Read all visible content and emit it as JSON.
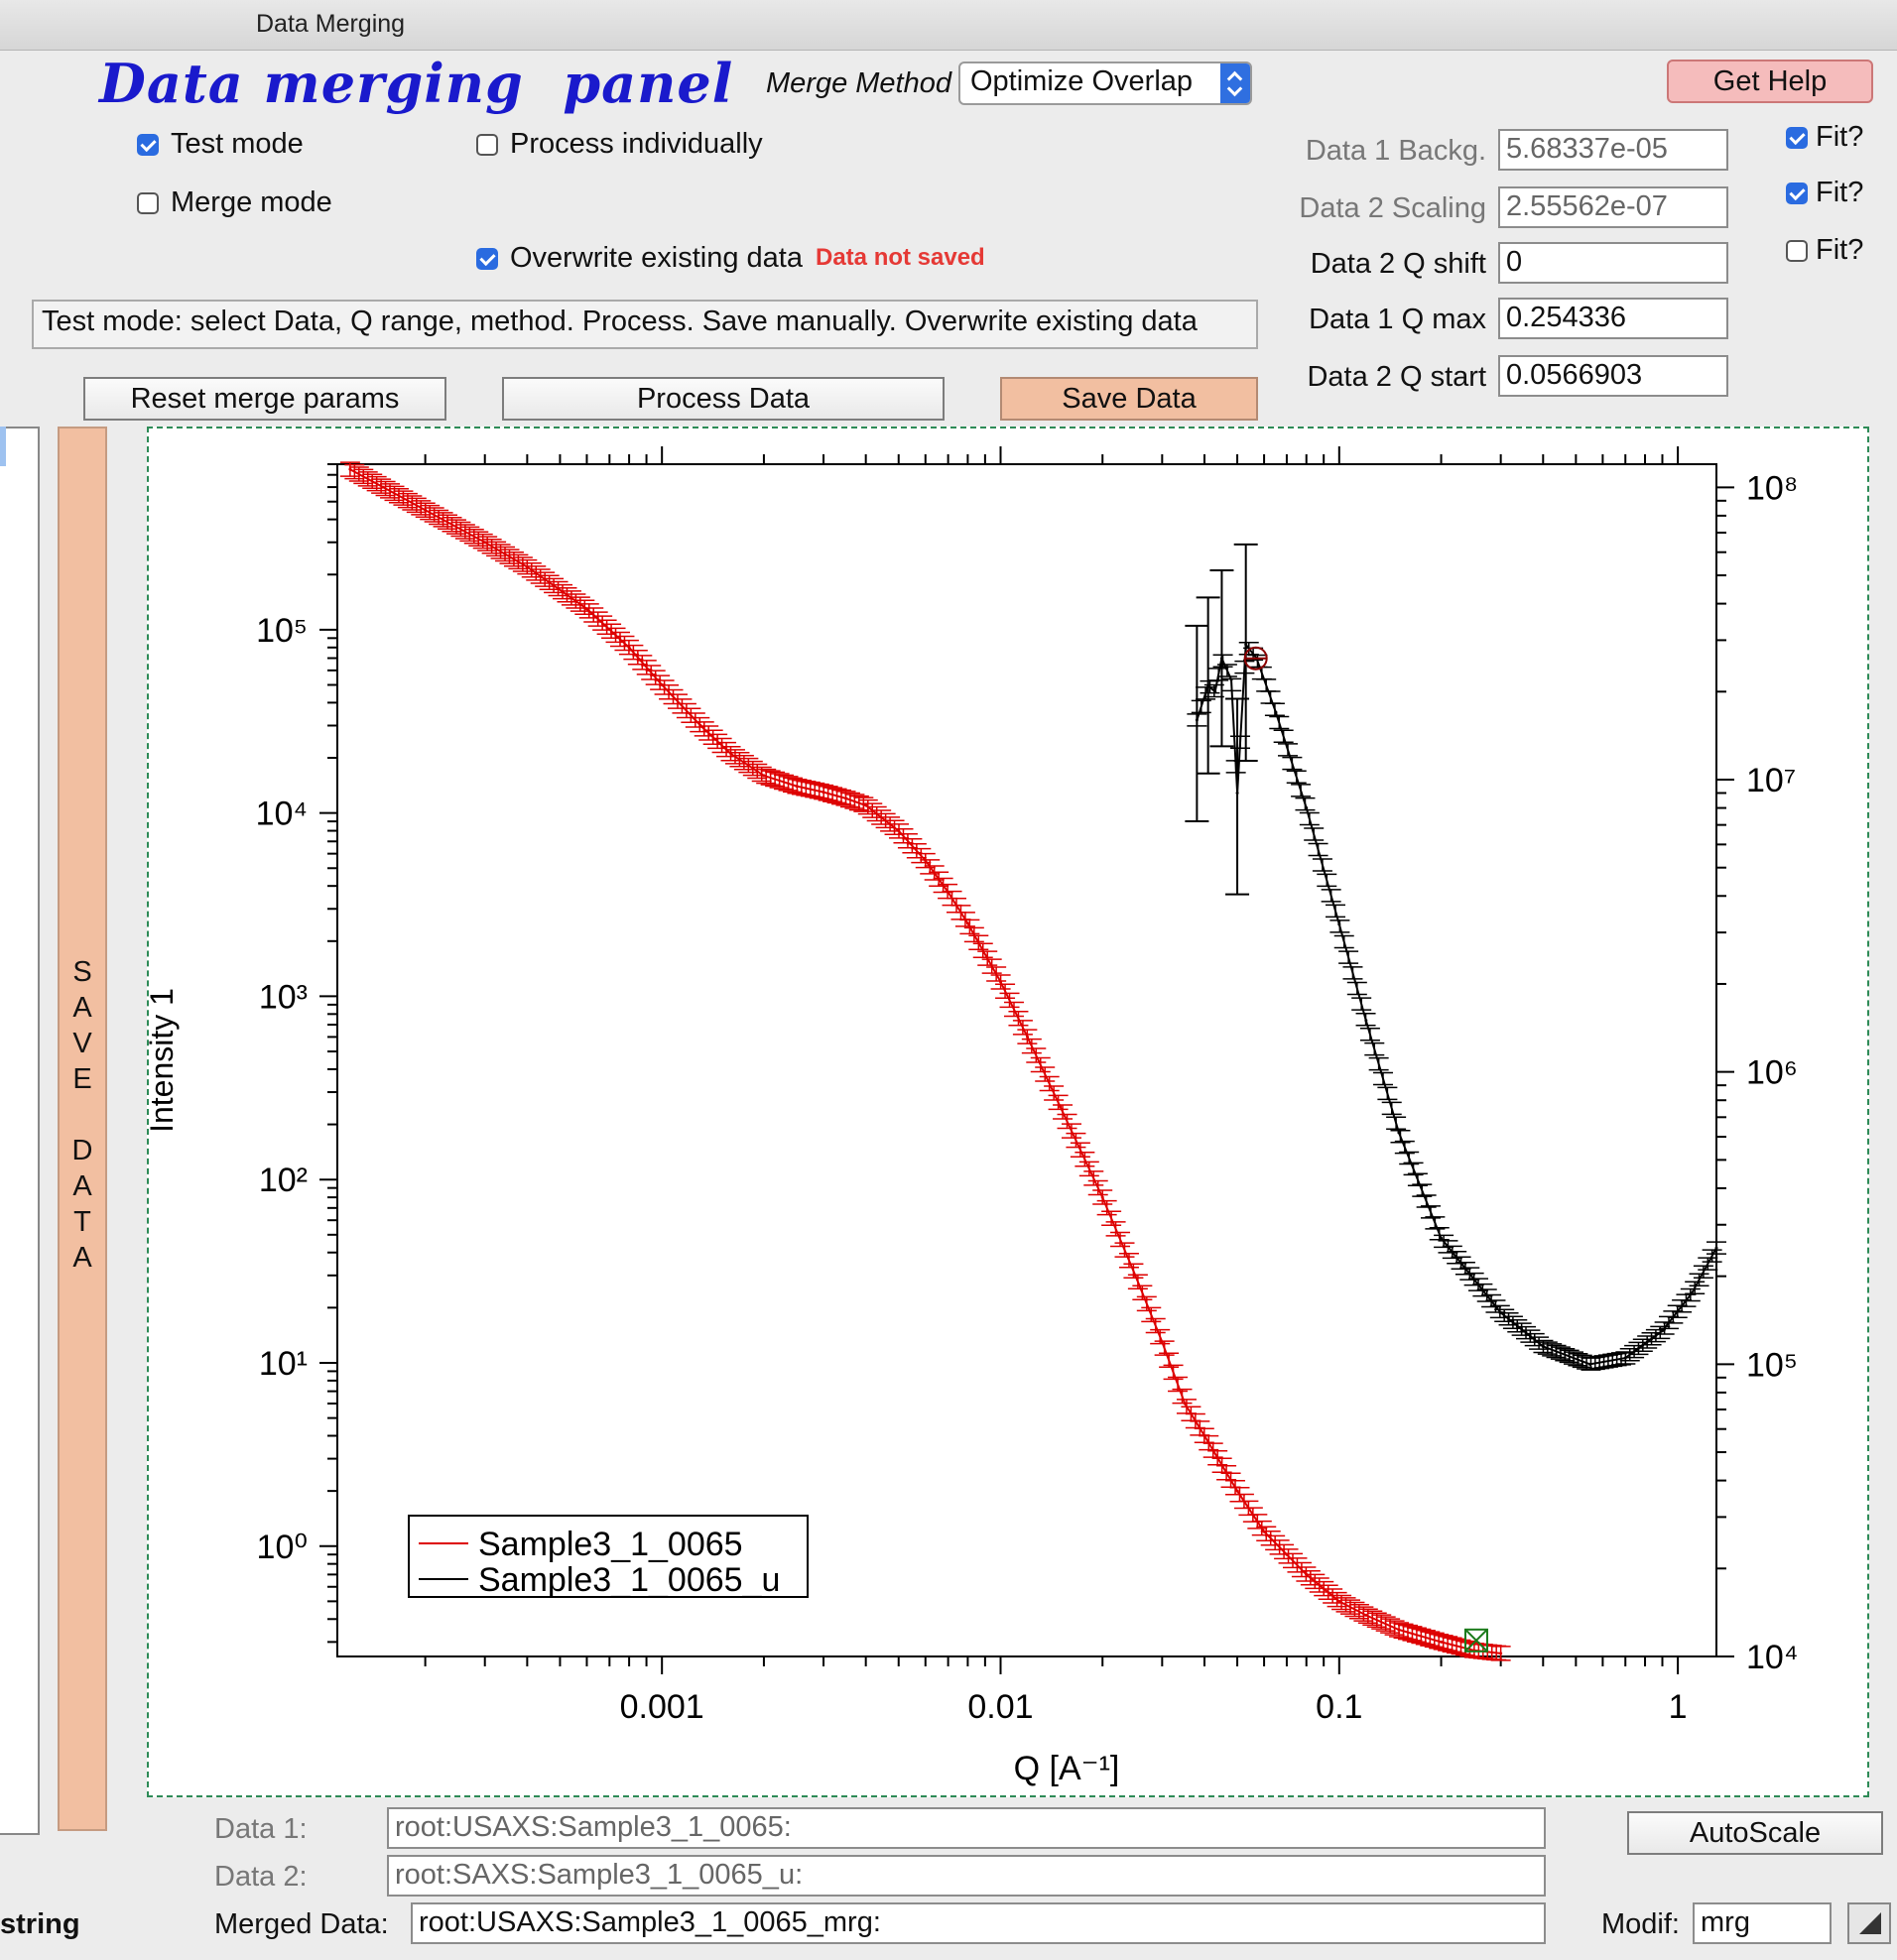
{
  "window": {
    "title": "Data Merging"
  },
  "panel": {
    "heading": "Data merging  panel",
    "merge_method_label": "Merge Method",
    "merge_method_value": "Optimize Overlap",
    "help_button": "Get Help",
    "checkboxes": {
      "test_mode": {
        "label": "Test mode",
        "checked": true
      },
      "merge_mode": {
        "label": "Merge mode",
        "checked": false
      },
      "process_individually": {
        "label": "Process individually",
        "checked": false
      },
      "overwrite": {
        "label": "Overwrite existing data",
        "checked": true
      }
    },
    "not_saved_text": "Data not saved",
    "status_text": "Test mode: select Data, Q range, method. Process. Save manually. Overwrite existing data",
    "params": [
      {
        "label": "Data 1 Backg.",
        "value": "5.68337e-05",
        "fit_label": "Fit?",
        "fit_checked": true,
        "disabled": true
      },
      {
        "label": "Data 2 Scaling",
        "value": "2.55562e-07",
        "fit_label": "Fit?",
        "fit_checked": true,
        "disabled": true
      },
      {
        "label": "Data 2 Q shift",
        "value": "0",
        "fit_label": "Fit?",
        "fit_checked": false,
        "disabled": false
      },
      {
        "label": "Data 1 Q max",
        "value": "0.254336",
        "disabled": false
      },
      {
        "label": "Data 2 Q start",
        "value": "0.0566903",
        "disabled": false
      }
    ],
    "buttons": {
      "reset": "Reset merge params",
      "process": "Process Data",
      "save": "Save Data",
      "autoscale": "AutoScale"
    },
    "save_side_button": [
      "S",
      "A",
      "V",
      "E",
      "",
      "D",
      "A",
      "T",
      "A"
    ],
    "bottom": {
      "data1_label": "Data 1:",
      "data1_value": "root:USAXS:Sample3_1_0065:",
      "data2_label": "Data 2:",
      "data2_value": "root:SAXS:Sample3_1_0065_u:",
      "merged_label": "Merged Data:",
      "merged_value": "root:USAXS:Sample3_1_0065_mrg:",
      "modif_label": "Modif:",
      "modif_value": "mrg",
      "left_fragment": "string"
    }
  },
  "chart_data": {
    "type": "line",
    "x_scale": "log",
    "y_scale": "log",
    "xlim": [
      0.00011,
      1.3
    ],
    "ylim_left": [
      0.25,
      800000
    ],
    "ylim_right": [
      10000,
      120000000
    ],
    "xlabel": "Q [A⁻¹]",
    "ylabel": "Intensity 1",
    "x_ticks": [
      "0.001",
      "0.01",
      "0.1",
      "1"
    ],
    "y_left_ticks": [
      "10⁰",
      "10¹",
      "10²",
      "10³",
      "10⁴",
      "10⁵"
    ],
    "y_right_ticks": [
      "10⁴",
      "10⁵",
      "10⁶",
      "10⁷",
      "10⁸"
    ],
    "legend_position": "bottom-left",
    "colors": {
      "series1": "#dd0000",
      "series2": "#000000",
      "cursor_round": "#8b0000",
      "cursor_square": "#1a7a1a"
    },
    "series": [
      {
        "name": "Sample3_1_0065",
        "axis": "left",
        "x": [
          0.00012,
          0.00015,
          0.0002,
          0.0003,
          0.0004,
          0.0006,
          0.0008,
          0.001,
          0.0013,
          0.0016,
          0.002,
          0.0025,
          0.003,
          0.0035,
          0.004,
          0.005,
          0.006,
          0.007,
          0.008,
          0.01,
          0.012,
          0.015,
          0.02,
          0.025,
          0.03,
          0.035,
          0.04,
          0.05,
          0.06,
          0.07,
          0.08,
          0.1,
          0.12,
          0.15,
          0.2,
          0.25,
          0.3
        ],
        "y": [
          750000,
          600000,
          450000,
          300000,
          220000,
          130000,
          80000,
          50000,
          30000,
          21000,
          16000,
          14000,
          13000,
          12000,
          11000,
          8000,
          5500,
          3700,
          2500,
          1200,
          600,
          250,
          80,
          30,
          13,
          6,
          4,
          2,
          1.2,
          0.9,
          0.7,
          0.5,
          0.42,
          0.35,
          0.3,
          0.27,
          0.26
        ]
      },
      {
        "name": "Sample3_1_0065_u",
        "axis": "right",
        "x": [
          0.038,
          0.041,
          0.043,
          0.045,
          0.048,
          0.05,
          0.053,
          0.057,
          0.065,
          0.08,
          0.1,
          0.12,
          0.15,
          0.2,
          0.3,
          0.4,
          0.55,
          0.7,
          0.9,
          1.1,
          1.3
        ],
        "y": [
          16000000,
          21000000,
          20000000,
          26000000,
          22000000,
          9000000,
          29000000,
          26000000,
          17000000,
          8000000,
          3200000,
          1500000,
          620000,
          270000,
          150000,
          115000,
          100000,
          105000,
          130000,
          175000,
          250000
        ]
      }
    ],
    "cursors": [
      {
        "series": "Sample3_1_0065_u",
        "x": 0.0567,
        "y": 26000000
      },
      {
        "series": "Sample3_1_0065",
        "x": 0.254,
        "y": 0.27
      }
    ]
  }
}
